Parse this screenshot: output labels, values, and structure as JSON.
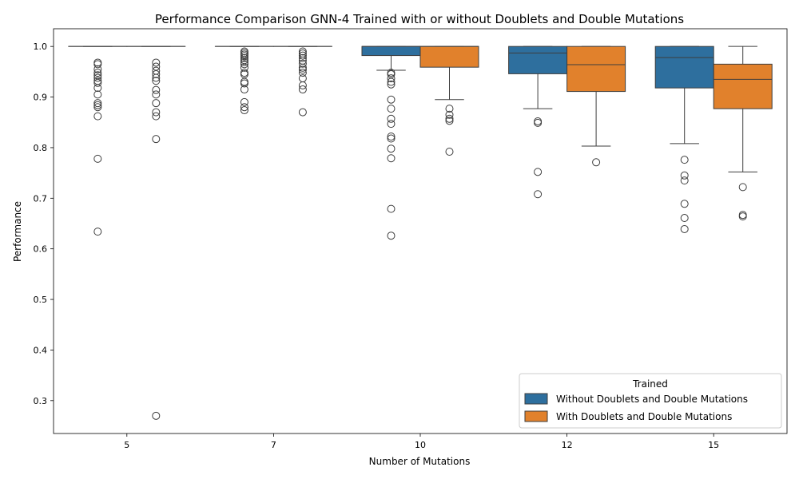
{
  "chart_data": {
    "type": "box",
    "title": "Performance Comparison GNN-4 Trained with or without Doublets and Double Mutations",
    "xlabel": "Number of Mutations",
    "ylabel": "Performance",
    "categories": [
      "5",
      "7",
      "10",
      "12",
      "15"
    ],
    "ylim": [
      0.235,
      1.035
    ],
    "yticks": [
      "0.3",
      "0.4",
      "0.5",
      "0.6",
      "0.7",
      "0.8",
      "0.9",
      "1.0"
    ],
    "legend": {
      "title": "Trained",
      "position": "lower-right"
    },
    "grid": false,
    "series": [
      {
        "name": "Without Doublets and Double Mutations",
        "color": "#2e6f9e",
        "boxes": [
          {
            "q1": 1.0,
            "median": 1.0,
            "q3": 1.0,
            "whislo": 1.0,
            "whishi": 1.0,
            "outliers": [
              0.968,
              0.965,
              0.955,
              0.948,
              0.943,
              0.938,
              0.932,
              0.928,
              0.918,
              0.905,
              0.888,
              0.884,
              0.88,
              0.862,
              0.778,
              0.634
            ]
          },
          {
            "q1": 1.0,
            "median": 1.0,
            "q3": 1.0,
            "whislo": 1.0,
            "whishi": 1.0,
            "outliers": [
              0.99,
              0.987,
              0.984,
              0.981,
              0.977,
              0.973,
              0.969,
              0.965,
              0.958,
              0.948,
              0.945,
              0.93,
              0.927,
              0.915,
              0.89,
              0.88,
              0.874
            ]
          },
          {
            "q1": 0.982,
            "median": 1.0,
            "q3": 1.0,
            "whislo": 0.953,
            "whishi": 1.0,
            "outliers": [
              0.948,
              0.945,
              0.937,
              0.93,
              0.925,
              0.895,
              0.877,
              0.857,
              0.847,
              0.822,
              0.818,
              0.798,
              0.779,
              0.679,
              0.626
            ]
          },
          {
            "q1": 0.946,
            "median": 0.987,
            "q3": 1.0,
            "whislo": 0.877,
            "whishi": 1.0,
            "outliers": [
              0.852,
              0.849,
              0.752,
              0.708
            ]
          },
          {
            "q1": 0.918,
            "median": 0.978,
            "q3": 1.0,
            "whislo": 0.808,
            "whishi": 1.0,
            "outliers": [
              0.776,
              0.745,
              0.735,
              0.689,
              0.661,
              0.639
            ]
          }
        ]
      },
      {
        "name": "With Doublets and Double Mutations",
        "color": "#e1812c",
        "boxes": [
          {
            "q1": 1.0,
            "median": 1.0,
            "q3": 1.0,
            "whislo": 1.0,
            "whishi": 1.0,
            "outliers": [
              0.968,
              0.96,
              0.952,
              0.945,
              0.938,
              0.932,
              0.914,
              0.905,
              0.888,
              0.87,
              0.862,
              0.817,
              0.27
            ]
          },
          {
            "q1": 1.0,
            "median": 1.0,
            "q3": 1.0,
            "whislo": 1.0,
            "whishi": 1.0,
            "outliers": [
              0.99,
              0.986,
              0.982,
              0.977,
              0.972,
              0.966,
              0.958,
              0.954,
              0.948,
              0.937,
              0.923,
              0.915,
              0.87
            ]
          },
          {
            "q1": 0.959,
            "median": 1.0,
            "q3": 1.0,
            "whislo": 0.895,
            "whishi": 1.0,
            "outliers": [
              0.877,
              0.865,
              0.857,
              0.853,
              0.792
            ]
          },
          {
            "q1": 0.911,
            "median": 0.964,
            "q3": 1.0,
            "whislo": 0.803,
            "whishi": 1.0,
            "outliers": [
              0.771
            ]
          },
          {
            "q1": 0.877,
            "median": 0.935,
            "q3": 0.965,
            "whislo": 0.752,
            "whishi": 1.0,
            "outliers": [
              0.722,
              0.667,
              0.664
            ]
          }
        ]
      }
    ]
  }
}
